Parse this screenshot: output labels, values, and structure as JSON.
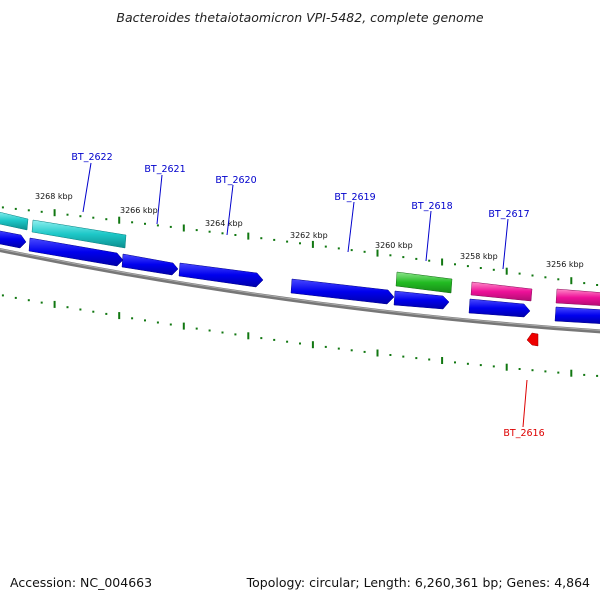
{
  "title": "Bacteroides thetaiotaomicron VPI-5482, complete genome",
  "footer": {
    "accession": "Accession: NC_004663",
    "summary": "Topology: circular; Length: 6,260,361 bp; Genes: 4,864"
  },
  "kbp_labels": [
    "3268 kbp",
    "3266 kbp",
    "3264 kbp",
    "3262 kbp",
    "3260 kbp",
    "3258 kbp",
    "3256 kbp"
  ],
  "gene_labels": [
    {
      "name": "BT_2622",
      "color": "#0000cc"
    },
    {
      "name": "BT_2621",
      "color": "#0000cc"
    },
    {
      "name": "BT_2620",
      "color": "#0000cc"
    },
    {
      "name": "BT_2619",
      "color": "#0000cc"
    },
    {
      "name": "BT_2618",
      "color": "#0000cc"
    },
    {
      "name": "BT_2617",
      "color": "#0000cc"
    },
    {
      "name": "BT_2616",
      "color": "#dd0000"
    }
  ],
  "colors": {
    "cyan": "#1ec8c8",
    "blue": "#0000ee",
    "green": "#22bb22",
    "magenta": "#ee1199",
    "red": "#ee0000",
    "backbone": "#888888",
    "ticks": "#117711"
  }
}
